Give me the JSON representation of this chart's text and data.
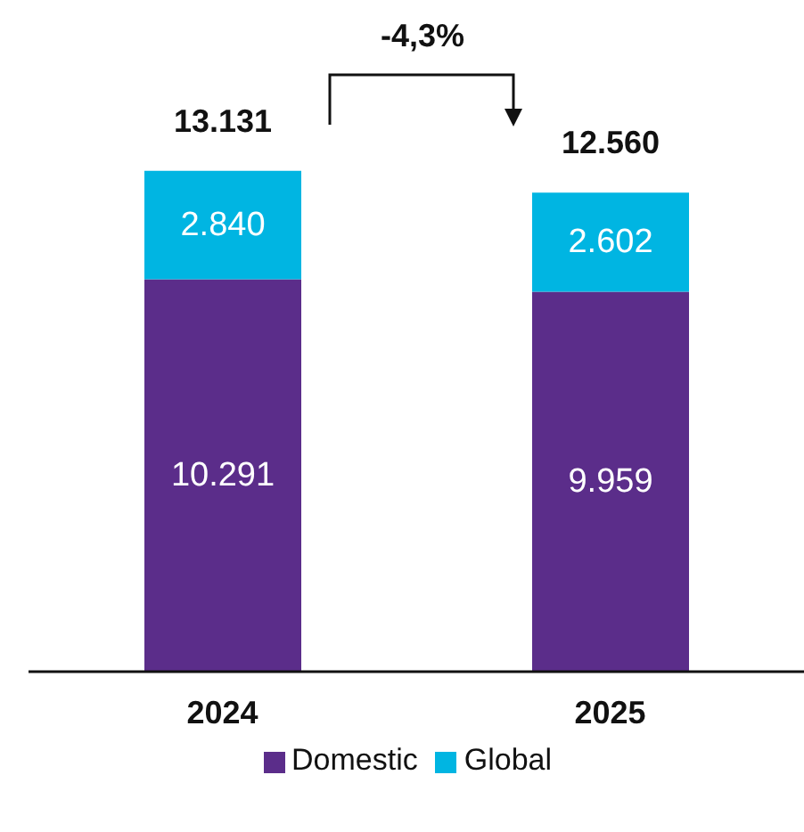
{
  "chart_data": {
    "type": "bar",
    "stacked": true,
    "categories": [
      "2024",
      "2025"
    ],
    "series": [
      {
        "name": "Domestic",
        "color": "#5b2d8a",
        "values": [
          10291,
          9959
        ],
        "value_labels": [
          "10.291",
          "9.959"
        ]
      },
      {
        "name": "Global",
        "color": "#00b5e2",
        "values": [
          2840,
          2602
        ],
        "value_labels": [
          "2.840",
          "2.602"
        ]
      }
    ],
    "totals": [
      "13.131",
      "12.560"
    ],
    "annotations": [
      "-4,3%"
    ],
    "legend": "bottom"
  }
}
